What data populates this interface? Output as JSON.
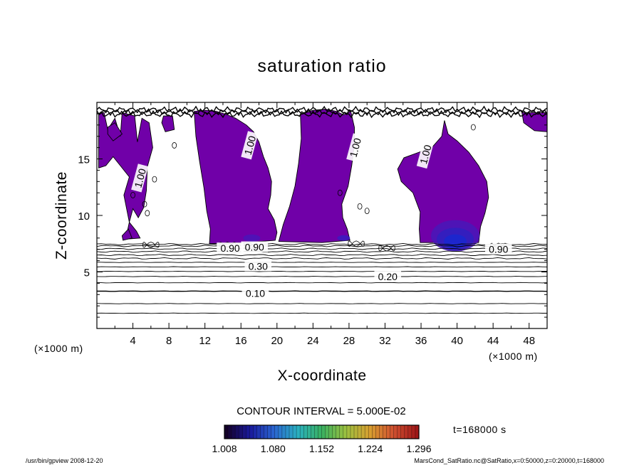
{
  "chart_data": {
    "type": "contour",
    "title": "saturation ratio",
    "xlabel": "X-coordinate",
    "ylabel": "Z-coordinate",
    "x_units": "(×1000 m)",
    "z_units": "(×1000 m)",
    "xlim": [
      0,
      50
    ],
    "ylim": [
      0,
      20
    ],
    "x_ticks": [
      "4",
      "8",
      "12",
      "16",
      "20",
      "24",
      "28",
      "32",
      "36",
      "40",
      "44",
      "48"
    ],
    "y_ticks": [
      "5",
      "10",
      "15"
    ],
    "contour_interval_label": "CONTOUR INTERVAL = 5.000E-02",
    "contour_labels": [
      {
        "text": "1.00",
        "x": 17.0,
        "z": 16.2
      },
      {
        "text": "1.00",
        "x": 28.7,
        "z": 16.0
      },
      {
        "text": "1.00",
        "x": 36.5,
        "z": 15.4
      },
      {
        "text": "1.00",
        "x": 4.8,
        "z": 13.3
      },
      {
        "text": "0.90",
        "x": 14.8,
        "z": 7.1
      },
      {
        "text": "0.90",
        "x": 17.5,
        "z": 7.2
      },
      {
        "text": "0.90",
        "x": 44.6,
        "z": 7.0
      },
      {
        "text": "0.30",
        "x": 17.9,
        "z": 5.5
      },
      {
        "text": "0.20",
        "x": 32.3,
        "z": 4.6
      },
      {
        "text": "0.10",
        "x": 17.6,
        "z": 3.1
      }
    ],
    "background_contours": [
      0.1,
      0.2,
      0.3,
      0.4,
      0.5,
      0.6,
      0.7,
      0.8,
      0.9,
      1.0
    ],
    "shading_scale": {
      "min": 1.008,
      "max": 1.296,
      "tick_labels": [
        "1.008",
        "1.080",
        "1.152",
        "1.224",
        "1.296"
      ],
      "colors": [
        "#140028",
        "#1a1a9c",
        "#2a64d0",
        "#2ab0c0",
        "#38b060",
        "#9ac040",
        "#d8a030",
        "#d05030",
        "#a01818"
      ]
    },
    "fill_color": "#7000a8",
    "time_label": "t=168000 s"
  },
  "footer": {
    "left": "/usr/bin/gpview   2008-12-20",
    "right": "MarsCond_SatRatio.nc@SatRatio,x=0:50000,z=0:20000,t=168000"
  }
}
